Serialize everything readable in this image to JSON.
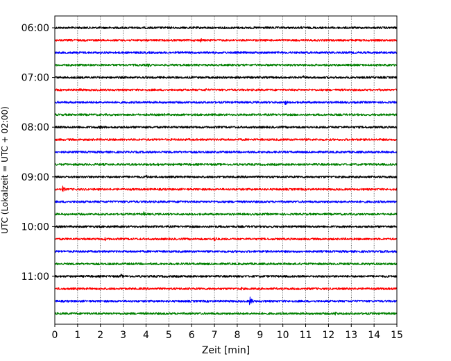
{
  "chart_data": {
    "type": "line",
    "subtype": "seismic-helicorder",
    "title": "",
    "xlabel": "Zeit  [min]",
    "ylabel": "UTC (Lokalzeit = UTC + 02:00)",
    "xlim": [
      0,
      15
    ],
    "x_ticks": [
      "0",
      "1",
      "2",
      "3",
      "4",
      "5",
      "6",
      "7",
      "8",
      "9",
      "10",
      "11",
      "12",
      "13",
      "14",
      "15"
    ],
    "y_tick_labels": [
      "06:00",
      "07:00",
      "08:00",
      "09:00",
      "10:00",
      "11:00"
    ],
    "y_ticks_at_trace": [
      0,
      4,
      8,
      12,
      16,
      20
    ],
    "x_grid": "dotted vertical lines at every minute",
    "colors": [
      "#000000",
      "#ff0000",
      "#0000ff",
      "#008000"
    ],
    "trace_interval_minutes": 15,
    "start_time": "06:00",
    "series": [
      {
        "start": "06:00",
        "color": "#000000",
        "events": [
          {
            "t": 5.1,
            "amp": 1.6
          },
          {
            "t": 8.0,
            "amp": 1.3
          },
          {
            "t": 10.8,
            "amp": 1.4
          }
        ]
      },
      {
        "start": "06:15",
        "color": "#ff0000",
        "events": [
          {
            "t": 6.4,
            "amp": 2.2
          },
          {
            "t": 9.8,
            "amp": 1.5
          }
        ]
      },
      {
        "start": "06:30",
        "color": "#0000ff",
        "events": [
          {
            "t": 1.4,
            "amp": 1.3
          },
          {
            "t": 12.2,
            "amp": 1.4
          },
          {
            "t": 14.8,
            "amp": 1.3
          }
        ]
      },
      {
        "start": "06:45",
        "color": "#008000",
        "events": [
          {
            "t": 4.1,
            "amp": 2.6
          },
          {
            "t": 0.5,
            "amp": 1.2
          }
        ]
      },
      {
        "start": "07:00",
        "color": "#000000",
        "events": [
          {
            "t": 0.8,
            "amp": 1.4
          },
          {
            "t": 10.9,
            "amp": 1.8
          },
          {
            "t": 12.8,
            "amp": 1.3
          }
        ]
      },
      {
        "start": "07:15",
        "color": "#ff0000",
        "events": [
          {
            "t": 1.1,
            "amp": 2.2
          },
          {
            "t": 6.6,
            "amp": 2.0
          }
        ]
      },
      {
        "start": "07:30",
        "color": "#0000ff",
        "events": [
          {
            "t": 10.1,
            "amp": 2.8
          },
          {
            "t": 3.2,
            "amp": 1.3
          }
        ]
      },
      {
        "start": "07:45",
        "color": "#008000",
        "events": [
          {
            "t": 3.0,
            "amp": 1.4
          },
          {
            "t": 4.8,
            "amp": 1.4
          }
        ]
      },
      {
        "start": "08:00",
        "color": "#000000",
        "events": [
          {
            "t": 1.0,
            "amp": 1.6
          },
          {
            "t": 2.0,
            "amp": 2.6
          }
        ]
      },
      {
        "start": "08:15",
        "color": "#ff0000",
        "events": []
      },
      {
        "start": "08:30",
        "color": "#0000ff",
        "events": [
          {
            "t": 13.3,
            "amp": 1.2
          }
        ]
      },
      {
        "start": "08:45",
        "color": "#008000",
        "events": [
          {
            "t": 4.5,
            "amp": 1.8
          },
          {
            "t": 5.2,
            "amp": 1.4
          }
        ]
      },
      {
        "start": "09:00",
        "color": "#000000",
        "events": [
          {
            "t": 4.0,
            "amp": 2.4
          },
          {
            "t": 1.7,
            "amp": 1.3
          }
        ]
      },
      {
        "start": "09:15",
        "color": "#ff0000",
        "events": [
          {
            "t": 0.35,
            "amp": 3.2
          }
        ]
      },
      {
        "start": "09:30",
        "color": "#0000ff",
        "events": [
          {
            "t": 5.5,
            "amp": 2.0
          }
        ]
      },
      {
        "start": "09:45",
        "color": "#008000",
        "events": [
          {
            "t": 3.9,
            "amp": 2.4
          },
          {
            "t": 9.3,
            "amp": 1.4
          }
        ]
      },
      {
        "start": "10:00",
        "color": "#000000",
        "events": [
          {
            "t": 2.0,
            "amp": 1.4
          },
          {
            "t": 7.0,
            "amp": 1.3
          }
        ]
      },
      {
        "start": "10:15",
        "color": "#ff0000",
        "events": [
          {
            "t": 2.2,
            "amp": 2.0
          },
          {
            "t": 7.0,
            "amp": 3.0
          }
        ]
      },
      {
        "start": "10:30",
        "color": "#0000ff",
        "events": [
          {
            "t": 9.8,
            "amp": 1.2
          }
        ]
      },
      {
        "start": "10:45",
        "color": "#008000",
        "events": [
          {
            "t": 13.8,
            "amp": 1.2
          }
        ]
      },
      {
        "start": "11:00",
        "color": "#000000",
        "events": [
          {
            "t": 2.9,
            "amp": 2.4
          },
          {
            "t": 14.1,
            "amp": 1.3
          }
        ]
      },
      {
        "start": "11:15",
        "color": "#ff0000",
        "events": [
          {
            "t": 8.2,
            "amp": 2.2
          }
        ]
      },
      {
        "start": "11:30",
        "color": "#0000ff",
        "events": [
          {
            "t": 8.55,
            "amp": 5.0
          },
          {
            "t": 11.9,
            "amp": 1.3
          }
        ]
      },
      {
        "start": "11:45",
        "color": "#008000",
        "events": [
          {
            "t": 12.3,
            "amp": 2.4
          }
        ]
      }
    ]
  }
}
